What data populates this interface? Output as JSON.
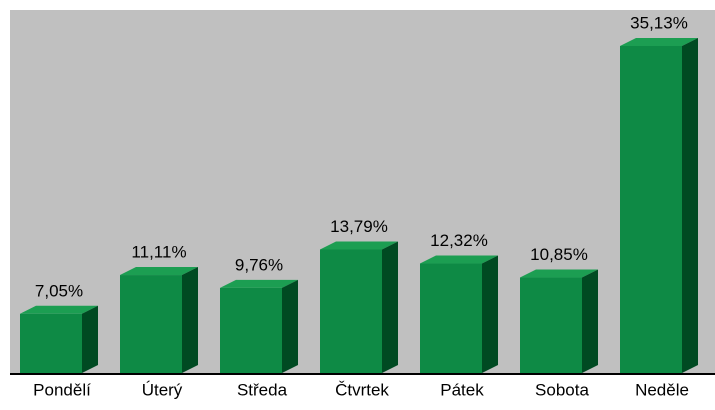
{
  "chart_data": {
    "type": "bar",
    "categories": [
      "Pondělí",
      "Úterý",
      "Středa",
      "Čtvrtek",
      "Pátek",
      "Sobota",
      "Neděle"
    ],
    "values": [
      7.05,
      11.11,
      9.76,
      13.79,
      12.32,
      10.85,
      35.13
    ],
    "value_labels": [
      "7,05%",
      "11,11%",
      "9,76%",
      "13,79%",
      "12,32%",
      "10,85%",
      "35,13%"
    ],
    "color": "#0e8a45"
  }
}
